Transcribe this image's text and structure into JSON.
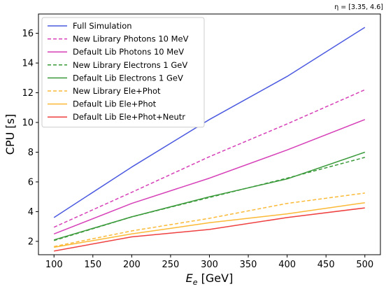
{
  "chart_data": {
    "type": "line",
    "annotation": "η = [3.35, 4.6]",
    "xlabel": "E_e [GeV]",
    "xlabel_main": "E",
    "xlabel_sub": "e",
    "xlabel_unit": " [GeV]",
    "ylabel": "CPU [s]",
    "xlim": [
      80,
      520
    ],
    "ylim": [
      1.1,
      17.3
    ],
    "xticks": [
      100,
      150,
      200,
      250,
      300,
      350,
      400,
      450,
      500
    ],
    "yticks": [
      2,
      4,
      6,
      8,
      10,
      12,
      14,
      16
    ],
    "legend_position": "top-left",
    "grid": false,
    "x": [
      100,
      200,
      300,
      400,
      500
    ],
    "series": [
      {
        "name": "Full Simulation",
        "values": [
          3.6,
          7.0,
          10.2,
          13.1,
          16.4
        ],
        "color": "#4c5ae0",
        "dash": "solid"
      },
      {
        "name": "New Library Photons  10 MeV",
        "values": [
          2.95,
          5.3,
          7.7,
          9.9,
          12.2
        ],
        "color": "#d63fb8",
        "dash": "dashed"
      },
      {
        "name": "Default Lib Photons    10 MeV",
        "values": [
          2.5,
          4.55,
          6.25,
          8.15,
          10.2
        ],
        "color": "#d63fb8",
        "dash": "solid"
      },
      {
        "name": "New Library Electrons 1 GeV",
        "values": [
          2.05,
          3.65,
          4.95,
          6.25,
          7.65
        ],
        "color": "#3a9a3a",
        "dash": "dashed"
      },
      {
        "name": "Default Lib Electrons    1 GeV",
        "values": [
          2.1,
          3.65,
          5.0,
          6.2,
          8.0
        ],
        "color": "#3a9a3a",
        "dash": "solid"
      },
      {
        "name": "New Library Ele+Phot",
        "values": [
          1.65,
          2.7,
          3.55,
          4.55,
          5.25
        ],
        "color": "#fbb936",
        "dash": "dashed"
      },
      {
        "name": "Default Lib Ele+Phot",
        "values": [
          1.6,
          2.5,
          3.25,
          3.85,
          4.6
        ],
        "color": "#fbb936",
        "dash": "solid"
      },
      {
        "name": "Default Lib Ele+Phot+Neutr",
        "values": [
          1.35,
          2.3,
          2.8,
          3.6,
          4.25
        ],
        "color": "#ef4040",
        "dash": "solid"
      }
    ]
  }
}
